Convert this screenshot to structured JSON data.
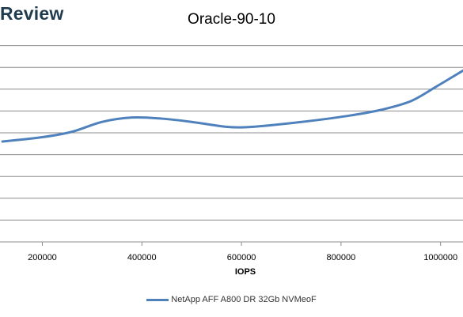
{
  "brand": "Review",
  "chart_data": {
    "type": "line",
    "title": "Oracle-90-10",
    "xlabel": "IOPS",
    "ylabel": "",
    "xlim": [
      115000,
      1045000
    ],
    "ylim": [
      0,
      10
    ],
    "x_ticks": [
      200000,
      400000,
      600000,
      800000,
      1000000
    ],
    "x_tick_labels": [
      "200000",
      "400000",
      "600000",
      "800000",
      "1000000"
    ],
    "y_gridlines": [
      1,
      2,
      3,
      4,
      5,
      6,
      7,
      8,
      9
    ],
    "grid": true,
    "legend": "bottom",
    "series": [
      {
        "name": "NetApp AFF A800 DR 32Gb NVMeoF",
        "color": "#4f81bd",
        "x": [
          120000,
          200000,
          260000,
          320000,
          380000,
          440000,
          500000,
          560000,
          600000,
          660000,
          740000,
          820000,
          880000,
          940000,
          990000,
          1045000
        ],
        "y": [
          4.6,
          4.8,
          5.05,
          5.5,
          5.7,
          5.65,
          5.5,
          5.3,
          5.25,
          5.35,
          5.55,
          5.8,
          6.05,
          6.45,
          7.1,
          7.85
        ]
      }
    ]
  }
}
